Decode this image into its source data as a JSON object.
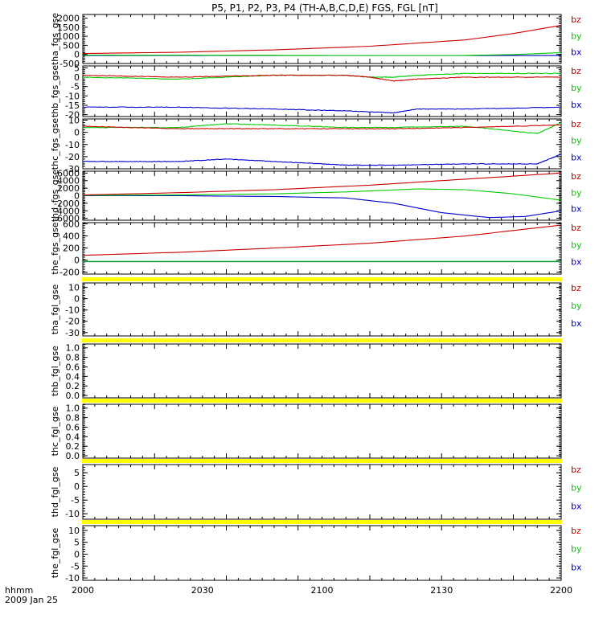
{
  "title": "P5, P1, P2, P3, P4 (TH-A,B,C,D,E) FGS, FGL [nT]",
  "colors": {
    "bz": "#cc0000",
    "by": "#00cc00",
    "bx": "#0000cc",
    "yellow": "#ffff00"
  },
  "time_axis": {
    "ticks": [
      "2000",
      "2030",
      "2100",
      "2130",
      "2200"
    ],
    "label_line1": "hhmm",
    "label_line2": "2009 Jan 25"
  },
  "chart_data": [
    {
      "type": "line",
      "ylabel": "tha_fgs_gse",
      "yticks": [
        "2000",
        "1500",
        "1000",
        "500",
        "0",
        "-500"
      ],
      "ylim": [
        -500,
        2200
      ],
      "legend": [
        "bz",
        "by",
        "bx"
      ],
      "series": [
        {
          "name": "bz",
          "x": [
            0,
            40,
            80,
            120,
            160,
            180,
            200
          ],
          "values": [
            50,
            120,
            250,
            450,
            800,
            1150,
            1600
          ]
        },
        {
          "name": "by",
          "x": [
            0,
            40,
            80,
            120,
            160,
            180,
            200
          ],
          "values": [
            -40,
            -45,
            -50,
            -60,
            -55,
            -10,
            100
          ]
        },
        {
          "name": "bx",
          "x": [
            0,
            40,
            80,
            120,
            160,
            200
          ],
          "values": [
            -60,
            -60,
            -60,
            -60,
            -60,
            -60
          ]
        }
      ]
    },
    {
      "type": "line",
      "ylabel": "thb_fgs_gse",
      "yticks": [
        "5",
        "0",
        "-5",
        "-10",
        "-15",
        "-20"
      ],
      "ylim": [
        -21,
        6
      ],
      "legend": [
        "bz",
        "by",
        "bx"
      ],
      "series": [
        {
          "name": "bz",
          "x": [
            0,
            40,
            80,
            110,
            120,
            130,
            140,
            160,
            200
          ],
          "values": [
            1,
            0,
            1,
            1,
            0,
            -2,
            -1,
            0,
            0
          ]
        },
        {
          "name": "by",
          "x": [
            0,
            40,
            80,
            110,
            120,
            130,
            140,
            160,
            200
          ],
          "values": [
            0,
            -1,
            1,
            1,
            0,
            0,
            1,
            2,
            2
          ]
        },
        {
          "name": "bx",
          "x": [
            0,
            40,
            80,
            110,
            130,
            140,
            160,
            200
          ],
          "values": [
            -16,
            -16,
            -17,
            -18,
            -19,
            -17,
            -17,
            -16
          ]
        }
      ]
    },
    {
      "type": "line",
      "ylabel": "thc_fgs_gse",
      "yticks": [
        "10",
        "0",
        "-10",
        "-20",
        "-30"
      ],
      "ylim": [
        -30,
        11
      ],
      "legend": [
        "bz",
        "by",
        "bx"
      ],
      "series": [
        {
          "name": "bz",
          "x": [
            0,
            40,
            60,
            80,
            110,
            130,
            160,
            200
          ],
          "values": [
            5,
            3,
            3,
            3,
            3,
            3,
            4,
            6
          ]
        },
        {
          "name": "by",
          "x": [
            0,
            40,
            60,
            80,
            110,
            130,
            160,
            190,
            200
          ],
          "values": [
            4,
            4,
            7,
            6,
            4,
            4,
            5,
            -1,
            8
          ]
        },
        {
          "name": "bx",
          "x": [
            0,
            20,
            40,
            60,
            80,
            100,
            110,
            130,
            160,
            190,
            200
          ],
          "values": [
            -24,
            -24,
            -24,
            -22,
            -24,
            -26,
            -27,
            -27,
            -26,
            -26,
            -18
          ]
        }
      ]
    },
    {
      "type": "line",
      "ylabel": "thd_fgs_gse",
      "yticks": [
        "6000",
        "4000",
        "2000",
        "0",
        "-2000",
        "-4000",
        "-6000"
      ],
      "ylim": [
        -6500,
        6500
      ],
      "legend": [
        "bz",
        "by",
        "bx"
      ],
      "series": [
        {
          "name": "bz",
          "x": [
            0,
            40,
            80,
            120,
            160,
            200
          ],
          "values": [
            200,
            800,
            1600,
            2800,
            4400,
            6000
          ]
        },
        {
          "name": "by",
          "x": [
            0,
            40,
            80,
            110,
            140,
            160,
            180,
            200
          ],
          "values": [
            100,
            200,
            500,
            1000,
            1800,
            1600,
            500,
            -1200
          ]
        },
        {
          "name": "bx",
          "x": [
            0,
            40,
            80,
            110,
            130,
            150,
            170,
            185,
            200
          ],
          "values": [
            0,
            0,
            -200,
            -600,
            -2000,
            -4500,
            -5800,
            -5500,
            -4000
          ]
        }
      ]
    },
    {
      "type": "line",
      "ylabel": "the_fgs_gse",
      "yticks": [
        "600",
        "400",
        "200",
        "0",
        "-200"
      ],
      "ylim": [
        -230,
        620
      ],
      "legend": [
        "bz",
        "by",
        "bx"
      ],
      "series": [
        {
          "name": "bz",
          "x": [
            0,
            40,
            80,
            120,
            160,
            200
          ],
          "values": [
            80,
            130,
            200,
            280,
            400,
            580
          ]
        },
        {
          "name": "by",
          "x": [
            0,
            200
          ],
          "values": [
            -20,
            -20
          ]
        },
        {
          "name": "bx",
          "x": [
            0,
            200
          ],
          "values": [
            -25,
            -25
          ]
        }
      ]
    },
    {
      "type": "line",
      "ylabel": "tha_fgl_gse",
      "yticks": [
        "10",
        "0",
        "-10",
        "-20",
        "-30"
      ],
      "ylim": [
        -33,
        14
      ],
      "legend": [
        "bz",
        "by",
        "bx"
      ],
      "series": []
    },
    {
      "type": "line",
      "ylabel": "thb_fgl_gse",
      "yticks": [
        "1.0",
        "0.8",
        "0.6",
        "0.4",
        "0.2",
        "0.0"
      ],
      "ylim": [
        -0.05,
        1.08
      ],
      "legend": [],
      "series": []
    },
    {
      "type": "line",
      "ylabel": "thc_fgl_gse",
      "yticks": [
        "1.0",
        "0.8",
        "0.6",
        "0.4",
        "0.2",
        "0.0"
      ],
      "ylim": [
        -0.05,
        1.08
      ],
      "legend": [],
      "series": []
    },
    {
      "type": "line",
      "ylabel": "thd_fgl_gse",
      "yticks": [
        "5",
        "0",
        "-5",
        "-10"
      ],
      "ylim": [
        -12,
        8
      ],
      "legend": [
        "bz",
        "by",
        "bx"
      ],
      "series": []
    },
    {
      "type": "line",
      "ylabel": "the_fgl_gse",
      "yticks": [
        "10",
        "5",
        "0",
        "-5",
        "-10"
      ],
      "ylim": [
        -11,
        12
      ],
      "legend": [
        "bz",
        "by",
        "bx"
      ],
      "series": []
    }
  ]
}
